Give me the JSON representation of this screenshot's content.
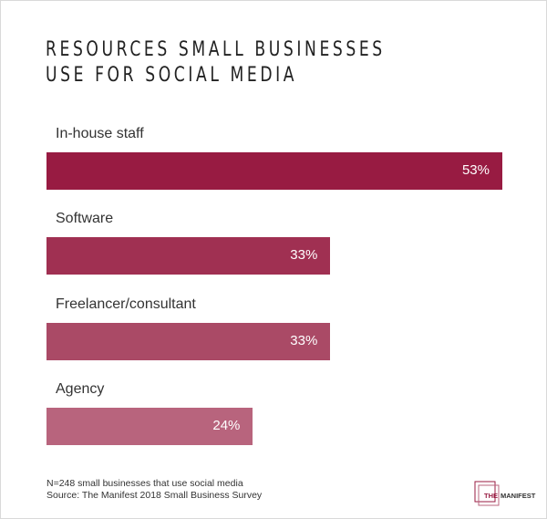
{
  "chart_data": {
    "type": "bar",
    "orientation": "horizontal",
    "title": "RESOURCES SMALL BUSINESSES\nUSE FOR SOCIAL MEDIA",
    "categories": [
      "In-house staff",
      "Software",
      "Freelancer/consultant",
      "Agency"
    ],
    "values": [
      53,
      33,
      33,
      24
    ],
    "value_labels": [
      "53%",
      "33%",
      "33%",
      "24%"
    ],
    "colors": [
      "#981b42",
      "#a03052",
      "#aa4a66",
      "#b8647d"
    ],
    "xlim": [
      0,
      53
    ],
    "grid": false
  },
  "footnotes": {
    "sample": "N=248 small businesses that use social media",
    "source": "Source: The Manifest 2018 Small Business Survey"
  },
  "logo": {
    "text": "THE MANIFEST",
    "color": "#981b42"
  }
}
